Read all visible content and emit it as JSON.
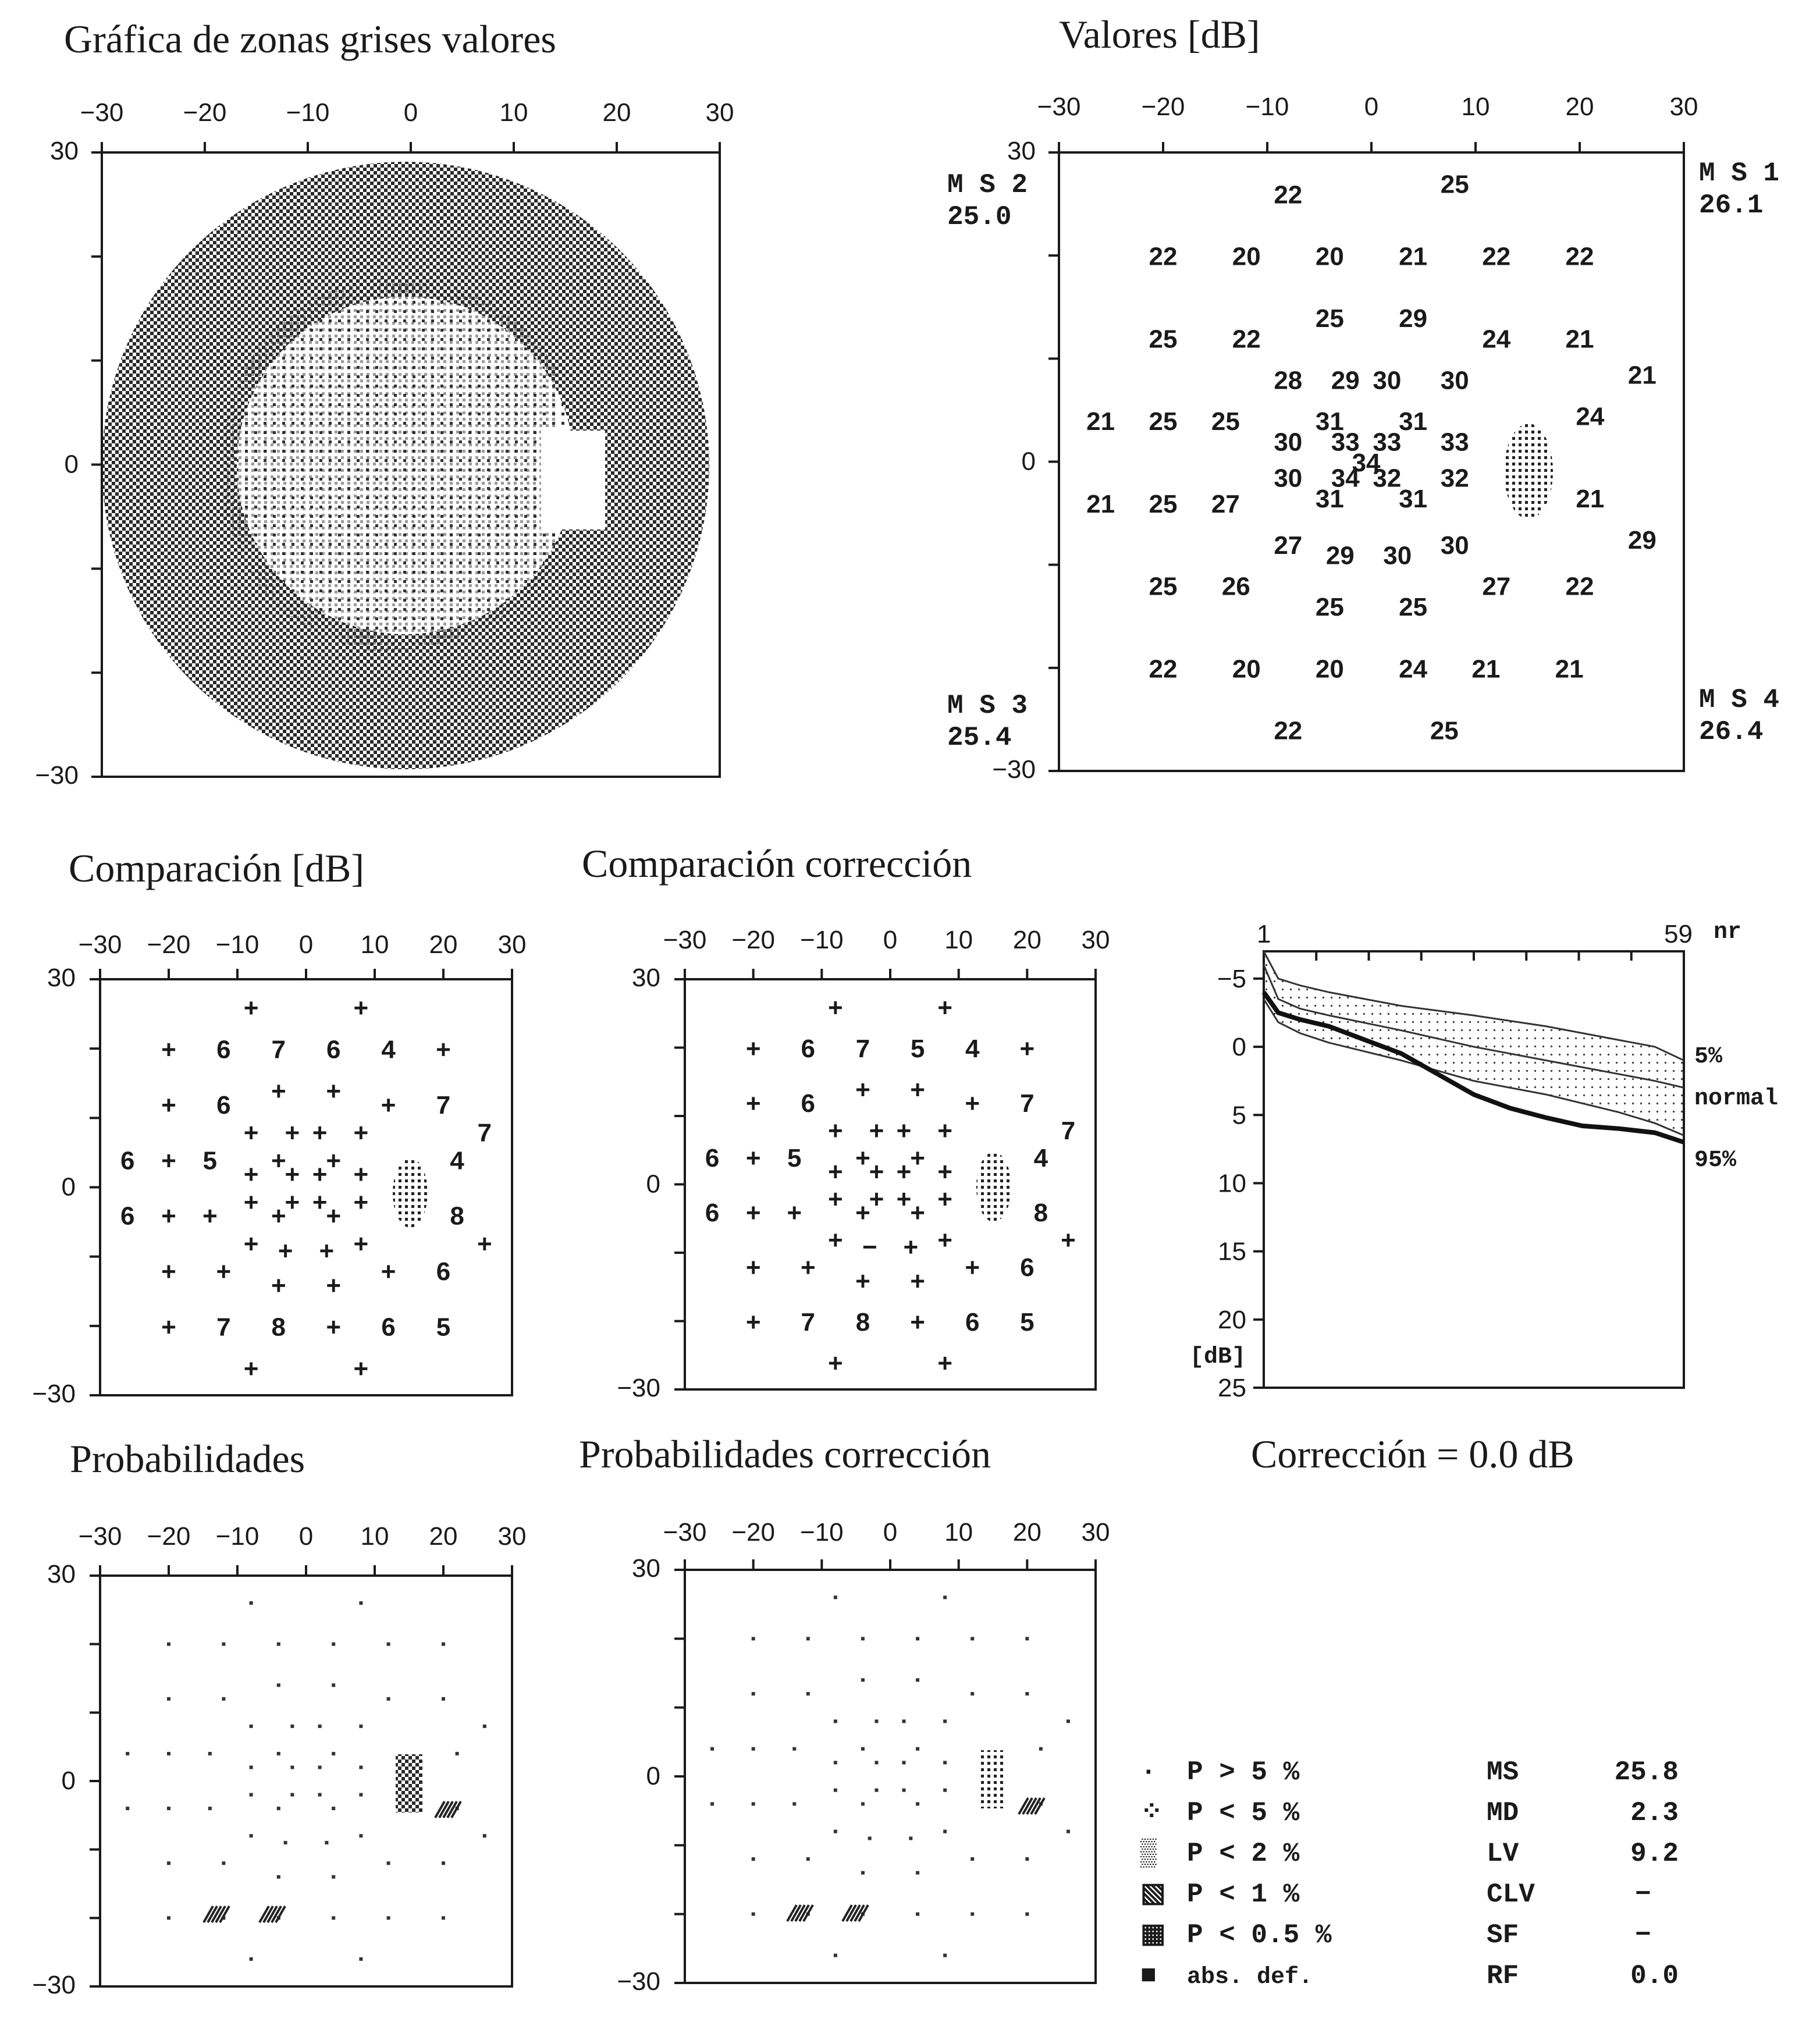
{
  "titles": {
    "gray": "Gráfica de zonas grises valores",
    "values": "Valores [dB]",
    "comp": "Comparación [dB]",
    "compcorr": "Comparación corrección",
    "prob": "Probabilidades",
    "probcorr": "Probabilidades corrección",
    "correction": "Corrección = 0.0 dB"
  },
  "axis_ticks": [
    "−30",
    "−20",
    "−10",
    "0",
    "10",
    "20",
    "30"
  ],
  "ms_labels": {
    "ms1": {
      "name": "M S 1",
      "value": "26.1"
    },
    "ms2": {
      "name": "M S 2",
      "value": "25.0"
    },
    "ms3": {
      "name": "M S 3",
      "value": "25.4"
    },
    "ms4": {
      "name": "M S 4",
      "value": "26.4"
    }
  },
  "curve_axis": {
    "x_start": "1",
    "x_end": "59",
    "x_unit": "nr",
    "y_ticks": [
      "−5",
      "0",
      "5",
      "10",
      "15",
      "20",
      "25"
    ],
    "y_unit": "[dB]",
    "labels": [
      "5%",
      "normal",
      "95%"
    ]
  },
  "legend": [
    {
      "sym": "·",
      "text": "P > 5 %"
    },
    {
      "sym": "⁘",
      "text": "P < 5 %"
    },
    {
      "sym": "▒",
      "text": "P < 2 %"
    },
    {
      "sym": "▧",
      "text": "P < 1 %"
    },
    {
      "sym": "▦",
      "text": "P < 0.5 %"
    },
    {
      "sym": "■",
      "text": "abs. def."
    }
  ],
  "stats": [
    {
      "label": "MS",
      "value": "25.8"
    },
    {
      "label": "MD",
      "value": "2.3"
    },
    {
      "label": "LV",
      "value": "9.2"
    },
    {
      "label": "CLV",
      "value": "−"
    },
    {
      "label": "SF",
      "value": "−"
    },
    {
      "label": "RF",
      "value": "0.0"
    }
  ],
  "chart_data": [
    {
      "type": "table",
      "title": "Valores [dB]",
      "xlim": [
        -30,
        30
      ],
      "ylim": [
        -30,
        30
      ],
      "points": [
        {
          "x": -8,
          "y": 26,
          "v": "22"
        },
        {
          "x": 8,
          "y": 27,
          "v": "25"
        },
        {
          "x": -20,
          "y": 20,
          "v": "22"
        },
        {
          "x": -12,
          "y": 20,
          "v": "20"
        },
        {
          "x": -4,
          "y": 20,
          "v": "20"
        },
        {
          "x": 4,
          "y": 20,
          "v": "21"
        },
        {
          "x": 12,
          "y": 20,
          "v": "22"
        },
        {
          "x": 20,
          "y": 20,
          "v": "22"
        },
        {
          "x": -20,
          "y": 12,
          "v": "25"
        },
        {
          "x": -12,
          "y": 12,
          "v": "22"
        },
        {
          "x": -4,
          "y": 14,
          "v": "25"
        },
        {
          "x": 4,
          "y": 14,
          "v": "29"
        },
        {
          "x": 12,
          "y": 12,
          "v": "24"
        },
        {
          "x": 20,
          "y": 12,
          "v": "21"
        },
        {
          "x": 26,
          "y": 8.5,
          "v": "21"
        },
        {
          "x": -8,
          "y": 8,
          "v": "28"
        },
        {
          "x": -2.5,
          "y": 8,
          "v": "29"
        },
        {
          "x": 1.5,
          "y": 8,
          "v": "30"
        },
        {
          "x": 8,
          "y": 8,
          "v": "30"
        },
        {
          "x": -26,
          "y": 4,
          "v": "21"
        },
        {
          "x": -20,
          "y": 4,
          "v": "25"
        },
        {
          "x": -14,
          "y": 4,
          "v": "25"
        },
        {
          "x": -4,
          "y": 4,
          "v": "31"
        },
        {
          "x": 4,
          "y": 4,
          "v": "31"
        },
        {
          "x": 21,
          "y": 4.5,
          "v": "24"
        },
        {
          "x": -8,
          "y": 2,
          "v": "30"
        },
        {
          "x": -2.5,
          "y": 2,
          "v": "33"
        },
        {
          "x": 1.5,
          "y": 2,
          "v": "33"
        },
        {
          "x": 8,
          "y": 2,
          "v": "33"
        },
        {
          "x": -0.5,
          "y": 0,
          "v": "34"
        },
        {
          "x": -8,
          "y": -1.5,
          "v": "30"
        },
        {
          "x": -2.5,
          "y": -1.5,
          "v": "34"
        },
        {
          "x": 1.5,
          "y": -1.5,
          "v": "32"
        },
        {
          "x": 8,
          "y": -1.5,
          "v": "32"
        },
        {
          "x": -26,
          "y": -4,
          "v": "21"
        },
        {
          "x": -20,
          "y": -4,
          "v": "25"
        },
        {
          "x": -14,
          "y": -4,
          "v": "27"
        },
        {
          "x": -4,
          "y": -3.5,
          "v": "31"
        },
        {
          "x": 4,
          "y": -3.5,
          "v": "31"
        },
        {
          "x": 21,
          "y": -3.5,
          "v": "21"
        },
        {
          "x": 26,
          "y": -7.5,
          "v": "29"
        },
        {
          "x": -8,
          "y": -8,
          "v": "27"
        },
        {
          "x": -3,
          "y": -9,
          "v": "29"
        },
        {
          "x": 2.5,
          "y": -9,
          "v": "30"
        },
        {
          "x": 8,
          "y": -8,
          "v": "30"
        },
        {
          "x": -20,
          "y": -12,
          "v": "25"
        },
        {
          "x": -13,
          "y": -12,
          "v": "26"
        },
        {
          "x": -4,
          "y": -14,
          "v": "25"
        },
        {
          "x": 4,
          "y": -14,
          "v": "25"
        },
        {
          "x": 12,
          "y": -12,
          "v": "27"
        },
        {
          "x": 20,
          "y": -12,
          "v": "22"
        },
        {
          "x": -20,
          "y": -20,
          "v": "22"
        },
        {
          "x": -12,
          "y": -20,
          "v": "20"
        },
        {
          "x": -4,
          "y": -20,
          "v": "20"
        },
        {
          "x": 4,
          "y": -20,
          "v": "24"
        },
        {
          "x": 11,
          "y": -20,
          "v": "21"
        },
        {
          "x": 19,
          "y": -20,
          "v": "21"
        },
        {
          "x": -8,
          "y": -26,
          "v": "22"
        },
        {
          "x": 7,
          "y": -26,
          "v": "25"
        }
      ]
    },
    {
      "type": "table",
      "title": "Comparación [dB]",
      "xlim": [
        -30,
        30
      ],
      "ylim": [
        -30,
        30
      ],
      "points": [
        {
          "x": -8,
          "y": 26,
          "v": "+"
        },
        {
          "x": 8,
          "y": 26,
          "v": "+"
        },
        {
          "x": -20,
          "y": 20,
          "v": "+"
        },
        {
          "x": -12,
          "y": 20,
          "v": "6"
        },
        {
          "x": -4,
          "y": 20,
          "v": "7"
        },
        {
          "x": 4,
          "y": 20,
          "v": "6"
        },
        {
          "x": 12,
          "y": 20,
          "v": "4"
        },
        {
          "x": 20,
          "y": 20,
          "v": "+"
        },
        {
          "x": -20,
          "y": 12,
          "v": "+"
        },
        {
          "x": -12,
          "y": 12,
          "v": "6"
        },
        {
          "x": -4,
          "y": 14,
          "v": "+"
        },
        {
          "x": 4,
          "y": 14,
          "v": "+"
        },
        {
          "x": 12,
          "y": 12,
          "v": "+"
        },
        {
          "x": 20,
          "y": 12,
          "v": "7"
        },
        {
          "x": 26,
          "y": 8,
          "v": "7"
        },
        {
          "x": -8,
          "y": 8,
          "v": "+"
        },
        {
          "x": -2,
          "y": 8,
          "v": "+"
        },
        {
          "x": 2,
          "y": 8,
          "v": "+"
        },
        {
          "x": 8,
          "y": 8,
          "v": "+"
        },
        {
          "x": -26,
          "y": 4,
          "v": "6"
        },
        {
          "x": -20,
          "y": 4,
          "v": "+"
        },
        {
          "x": -14,
          "y": 4,
          "v": "5"
        },
        {
          "x": -4,
          "y": 4,
          "v": "+"
        },
        {
          "x": 4,
          "y": 4,
          "v": "+"
        },
        {
          "x": 22,
          "y": 4,
          "v": "4"
        },
        {
          "x": -8,
          "y": 2,
          "v": "+"
        },
        {
          "x": -2,
          "y": 2,
          "v": "+"
        },
        {
          "x": 2,
          "y": 2,
          "v": "+"
        },
        {
          "x": 8,
          "y": 2,
          "v": "+"
        },
        {
          "x": -8,
          "y": -2,
          "v": "+"
        },
        {
          "x": -2,
          "y": -2,
          "v": "+"
        },
        {
          "x": 2,
          "y": -2,
          "v": "+"
        },
        {
          "x": 8,
          "y": -2,
          "v": "+"
        },
        {
          "x": -26,
          "y": -4,
          "v": "6"
        },
        {
          "x": -20,
          "y": -4,
          "v": "+"
        },
        {
          "x": -14,
          "y": -4,
          "v": "+"
        },
        {
          "x": -4,
          "y": -4,
          "v": "+"
        },
        {
          "x": 4,
          "y": -4,
          "v": "+"
        },
        {
          "x": 22,
          "y": -4,
          "v": "8"
        },
        {
          "x": 26,
          "y": -8,
          "v": "+"
        },
        {
          "x": -8,
          "y": -8,
          "v": "+"
        },
        {
          "x": -3,
          "y": -9,
          "v": "+"
        },
        {
          "x": 3,
          "y": -9,
          "v": "+"
        },
        {
          "x": 8,
          "y": -8,
          "v": "+"
        },
        {
          "x": -20,
          "y": -12,
          "v": "+"
        },
        {
          "x": -12,
          "y": -12,
          "v": "+"
        },
        {
          "x": -4,
          "y": -14,
          "v": "+"
        },
        {
          "x": 4,
          "y": -14,
          "v": "+"
        },
        {
          "x": 12,
          "y": -12,
          "v": "+"
        },
        {
          "x": 20,
          "y": -12,
          "v": "6"
        },
        {
          "x": -20,
          "y": -20,
          "v": "+"
        },
        {
          "x": -12,
          "y": -20,
          "v": "7"
        },
        {
          "x": -4,
          "y": -20,
          "v": "8"
        },
        {
          "x": 4,
          "y": -20,
          "v": "+"
        },
        {
          "x": 12,
          "y": -20,
          "v": "6"
        },
        {
          "x": 20,
          "y": -20,
          "v": "5"
        },
        {
          "x": -8,
          "y": -26,
          "v": "+"
        },
        {
          "x": 8,
          "y": -26,
          "v": "+"
        }
      ]
    },
    {
      "type": "table",
      "title": "Comparación corrección",
      "xlim": [
        -30,
        30
      ],
      "ylim": [
        -30,
        30
      ],
      "points": [
        {
          "x": -8,
          "y": 26,
          "v": "+"
        },
        {
          "x": 8,
          "y": 26,
          "v": "+"
        },
        {
          "x": -20,
          "y": 20,
          "v": "+"
        },
        {
          "x": -12,
          "y": 20,
          "v": "6"
        },
        {
          "x": -4,
          "y": 20,
          "v": "7"
        },
        {
          "x": 4,
          "y": 20,
          "v": "5"
        },
        {
          "x": 12,
          "y": 20,
          "v": "4"
        },
        {
          "x": 20,
          "y": 20,
          "v": "+"
        },
        {
          "x": -20,
          "y": 12,
          "v": "+"
        },
        {
          "x": -12,
          "y": 12,
          "v": "6"
        },
        {
          "x": -4,
          "y": 14,
          "v": "+"
        },
        {
          "x": 4,
          "y": 14,
          "v": "+"
        },
        {
          "x": 12,
          "y": 12,
          "v": "+"
        },
        {
          "x": 20,
          "y": 12,
          "v": "7"
        },
        {
          "x": 26,
          "y": 8,
          "v": "7"
        },
        {
          "x": -8,
          "y": 8,
          "v": "+"
        },
        {
          "x": -2,
          "y": 8,
          "v": "+"
        },
        {
          "x": 2,
          "y": 8,
          "v": "+"
        },
        {
          "x": 8,
          "y": 8,
          "v": "+"
        },
        {
          "x": -26,
          "y": 4,
          "v": "6"
        },
        {
          "x": -20,
          "y": 4,
          "v": "+"
        },
        {
          "x": -14,
          "y": 4,
          "v": "5"
        },
        {
          "x": -4,
          "y": 4,
          "v": "+"
        },
        {
          "x": 4,
          "y": 4,
          "v": "+"
        },
        {
          "x": 22,
          "y": 4,
          "v": "4"
        },
        {
          "x": -8,
          "y": 2,
          "v": "+"
        },
        {
          "x": -2,
          "y": 2,
          "v": "+"
        },
        {
          "x": 2,
          "y": 2,
          "v": "+"
        },
        {
          "x": 8,
          "y": 2,
          "v": "+"
        },
        {
          "x": -8,
          "y": -2,
          "v": "+"
        },
        {
          "x": -2,
          "y": -2,
          "v": "+"
        },
        {
          "x": 2,
          "y": -2,
          "v": "+"
        },
        {
          "x": 8,
          "y": -2,
          "v": "+"
        },
        {
          "x": -26,
          "y": -4,
          "v": "6"
        },
        {
          "x": -20,
          "y": -4,
          "v": "+"
        },
        {
          "x": -14,
          "y": -4,
          "v": "+"
        },
        {
          "x": -4,
          "y": -4,
          "v": "+"
        },
        {
          "x": 4,
          "y": -4,
          "v": "+"
        },
        {
          "x": 22,
          "y": -4,
          "v": "8"
        },
        {
          "x": 26,
          "y": -8,
          "v": "+"
        },
        {
          "x": -8,
          "y": -8,
          "v": "+"
        },
        {
          "x": -3,
          "y": -9,
          "v": "−"
        },
        {
          "x": 3,
          "y": -9,
          "v": "+"
        },
        {
          "x": 8,
          "y": -8,
          "v": "+"
        },
        {
          "x": -20,
          "y": -12,
          "v": "+"
        },
        {
          "x": -12,
          "y": -12,
          "v": "+"
        },
        {
          "x": -4,
          "y": -14,
          "v": "+"
        },
        {
          "x": 4,
          "y": -14,
          "v": "+"
        },
        {
          "x": 12,
          "y": -12,
          "v": "+"
        },
        {
          "x": 20,
          "y": -12,
          "v": "6"
        },
        {
          "x": -20,
          "y": -20,
          "v": "+"
        },
        {
          "x": -12,
          "y": -20,
          "v": "7"
        },
        {
          "x": -4,
          "y": -20,
          "v": "8"
        },
        {
          "x": 4,
          "y": -20,
          "v": "+"
        },
        {
          "x": 12,
          "y": -20,
          "v": "6"
        },
        {
          "x": 20,
          "y": -20,
          "v": "5"
        },
        {
          "x": -8,
          "y": -26,
          "v": "+"
        },
        {
          "x": 8,
          "y": -26,
          "v": "+"
        }
      ]
    },
    {
      "type": "line",
      "title": "",
      "xlabel": "nr",
      "ylabel": "[dB]",
      "xlim": [
        1,
        59
      ],
      "ylim": [
        -7,
        25
      ],
      "y_inverted": true,
      "series": [
        {
          "name": "5%",
          "x": [
            1,
            3,
            6,
            10,
            20,
            30,
            40,
            50,
            55,
            59
          ],
          "values": [
            -7,
            -5,
            -4.5,
            -4,
            -3,
            -2.3,
            -1.5,
            -0.5,
            0,
            1
          ]
        },
        {
          "name": "normal",
          "x": [
            1,
            3,
            6,
            10,
            20,
            30,
            40,
            50,
            55,
            59
          ],
          "values": [
            -6,
            -3.5,
            -2.8,
            -2.3,
            -1.2,
            0,
            1,
            2,
            2.5,
            3
          ]
        },
        {
          "name": "95%",
          "x": [
            1,
            3,
            6,
            10,
            20,
            30,
            40,
            50,
            55,
            59
          ],
          "values": [
            -3.5,
            -1.8,
            -1,
            -0.3,
            1,
            2.5,
            3.5,
            4.8,
            5.6,
            6.5
          ]
        },
        {
          "x": [
            1,
            3,
            6,
            10,
            15,
            20,
            25,
            30,
            35,
            40,
            45,
            50,
            55,
            59
          ],
          "values": [
            -4,
            -2.5,
            -2,
            -1.5,
            -0.5,
            0.5,
            2,
            3.5,
            4.5,
            5.2,
            5.8,
            6,
            6.3,
            7
          ]
        }
      ]
    }
  ]
}
